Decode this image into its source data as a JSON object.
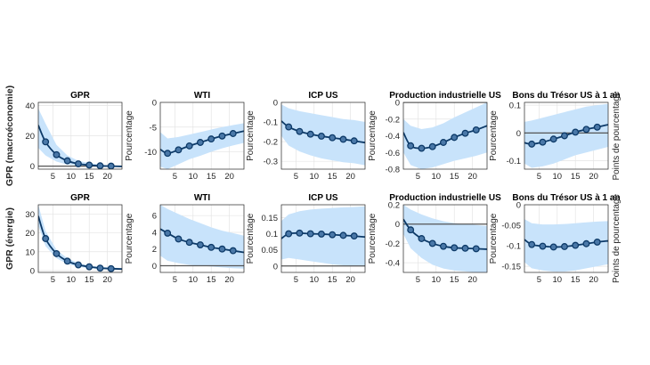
{
  "chart_data": [
    {
      "type": "line",
      "row": "macro",
      "title": "GPR",
      "ylabel": "GPR (macroéconomie)",
      "xlim": [
        1,
        24
      ],
      "ylim": [
        -2,
        42
      ],
      "xticks": [
        5,
        10,
        15,
        20
      ],
      "yticks": [
        0,
        20,
        40
      ],
      "grid": true,
      "zero_line": true,
      "x": [
        1,
        3,
        6,
        9,
        12,
        15,
        18,
        21,
        24
      ],
      "values": [
        27,
        16,
        7.5,
        3.5,
        1.5,
        0.7,
        0.2,
        0,
        -0.2
      ],
      "upper": [
        38,
        28,
        14,
        7,
        3.5,
        2,
        1,
        0.5,
        0.3
      ],
      "lower": [
        12,
        7,
        3,
        1,
        0.3,
        -0.2,
        -0.5,
        -0.6,
        -0.6
      ]
    },
    {
      "type": "line",
      "row": "macro",
      "title": "WTI",
      "ylabel": "Pourcentage",
      "xlim": [
        1,
        24
      ],
      "ylim": [
        -13.5,
        0
      ],
      "xticks": [
        5,
        10,
        15,
        20
      ],
      "yticks": [
        -10,
        -5,
        0
      ],
      "grid": true,
      "zero_line": false,
      "x": [
        1,
        3,
        6,
        9,
        12,
        15,
        18,
        21,
        24
      ],
      "values": [
        -9.5,
        -10.3,
        -9.6,
        -8.8,
        -8.1,
        -7.4,
        -6.8,
        -6.3,
        -5.8
      ],
      "upper": [
        -6,
        -7.3,
        -7,
        -6.5,
        -6,
        -5.5,
        -5,
        -4.6,
        -4.2
      ],
      "lower": [
        -13,
        -13.5,
        -12.5,
        -11.5,
        -10.8,
        -10,
        -9.3,
        -8.7,
        -8.2
      ]
    },
    {
      "type": "line",
      "row": "macro",
      "title": "ICP US",
      "ylabel": "Pourcentage",
      "xlim": [
        1,
        24
      ],
      "ylim": [
        -0.34,
        0
      ],
      "xticks": [
        5,
        10,
        15,
        20
      ],
      "yticks": [
        -0.3,
        -0.2,
        -0.1,
        0
      ],
      "grid": true,
      "zero_line": false,
      "x": [
        1,
        3,
        6,
        9,
        12,
        15,
        18,
        21,
        24
      ],
      "values": [
        -0.095,
        -0.125,
        -0.148,
        -0.162,
        -0.172,
        -0.18,
        -0.188,
        -0.196,
        -0.205
      ],
      "upper": [
        -0.01,
        -0.03,
        -0.045,
        -0.055,
        -0.065,
        -0.075,
        -0.085,
        -0.09,
        -0.1
      ],
      "lower": [
        -0.17,
        -0.22,
        -0.25,
        -0.27,
        -0.285,
        -0.295,
        -0.305,
        -0.31,
        -0.32
      ]
    },
    {
      "type": "line",
      "row": "macro",
      "title": "Production industrielle US",
      "ylabel": "Pourcentage",
      "xlim": [
        1,
        24
      ],
      "ylim": [
        -0.8,
        0
      ],
      "xticks": [
        5,
        10,
        15,
        20
      ],
      "yticks": [
        -0.8,
        -0.6,
        -0.4,
        -0.2,
        0
      ],
      "grid": true,
      "zero_line": true,
      "x": [
        1,
        3,
        6,
        9,
        12,
        15,
        18,
        21,
        24
      ],
      "values": [
        -0.36,
        -0.52,
        -0.55,
        -0.53,
        -0.48,
        -0.42,
        -0.37,
        -0.33,
        -0.28
      ],
      "upper": [
        -0.2,
        -0.28,
        -0.32,
        -0.3,
        -0.25,
        -0.18,
        -0.12,
        -0.06,
        0
      ],
      "lower": [
        -0.6,
        -0.75,
        -0.8,
        -0.78,
        -0.74,
        -0.7,
        -0.67,
        -0.64,
        -0.6
      ]
    },
    {
      "type": "line",
      "row": "macro",
      "title": "Bons du Trésor US à 1 an",
      "ylabel": "Pourcentage",
      "ylabel_right": "Points de pourcentage",
      "xlim": [
        1,
        24
      ],
      "ylim": [
        -0.13,
        0.11
      ],
      "xticks": [
        5,
        10,
        15,
        20
      ],
      "yticks": [
        -0.1,
        0,
        0.1
      ],
      "grid": true,
      "zero_line": true,
      "x": [
        1,
        3,
        6,
        9,
        12,
        15,
        18,
        21,
        24
      ],
      "values": [
        -0.035,
        -0.04,
        -0.033,
        -0.022,
        -0.01,
        0.003,
        0.013,
        0.021,
        0.03
      ],
      "upper": [
        0.04,
        0.045,
        0.055,
        0.065,
        0.075,
        0.085,
        0.095,
        0.1,
        0.105
      ],
      "lower": [
        -0.11,
        -0.125,
        -0.12,
        -0.11,
        -0.095,
        -0.08,
        -0.07,
        -0.06,
        -0.05
      ]
    },
    {
      "type": "line",
      "row": "energie",
      "title": "GPR",
      "ylabel": "GPR (énergie)",
      "xlim": [
        1,
        24
      ],
      "ylim": [
        -1,
        35
      ],
      "xticks": [
        5,
        10,
        15,
        20
      ],
      "yticks": [
        0,
        10,
        20,
        30
      ],
      "grid": true,
      "zero_line": false,
      "x": [
        1,
        3,
        6,
        9,
        12,
        15,
        18,
        21,
        24
      ],
      "values": [
        29,
        17,
        9,
        5,
        3,
        2,
        1.3,
        1,
        0.8
      ],
      "upper": [
        35,
        21,
        11,
        6.5,
        4,
        2.7,
        2,
        1.6,
        1.3
      ],
      "lower": [
        24,
        13,
        6.5,
        3.5,
        2,
        1.2,
        0.7,
        0.5,
        0.4
      ]
    },
    {
      "type": "line",
      "row": "energie",
      "title": "WTI",
      "ylabel": "Pourcentage",
      "xlim": [
        1,
        24
      ],
      "ylim": [
        -0.8,
        7.3
      ],
      "xticks": [
        5,
        10,
        15,
        20
      ],
      "yticks": [
        0,
        2,
        4,
        6
      ],
      "grid": true,
      "zero_line": true,
      "x": [
        1,
        3,
        6,
        9,
        12,
        15,
        18,
        21,
        24
      ],
      "values": [
        4.4,
        3.9,
        3.2,
        2.8,
        2.5,
        2.2,
        2,
        1.8,
        1.6
      ],
      "upper": [
        7.3,
        6.8,
        6.2,
        5.6,
        5.1,
        4.6,
        4.2,
        3.9,
        3.6
      ],
      "lower": [
        1.2,
        0.6,
        0.3,
        0.1,
        0,
        -0.1,
        -0.2,
        -0.3,
        -0.35
      ]
    },
    {
      "type": "line",
      "row": "energie",
      "title": "ICP US",
      "ylabel": "Pourcentage",
      "xlim": [
        1,
        24
      ],
      "ylim": [
        -0.02,
        0.19
      ],
      "xticks": [
        5,
        10,
        15,
        20
      ],
      "yticks": [
        0,
        0.05,
        0.1,
        0.15
      ],
      "grid": true,
      "zero_line": true,
      "x": [
        1,
        3,
        6,
        9,
        12,
        15,
        18,
        21,
        24
      ],
      "values": [
        0.085,
        0.1,
        0.102,
        0.1,
        0.099,
        0.097,
        0.095,
        0.093,
        0.09
      ],
      "upper": [
        0.14,
        0.16,
        0.17,
        0.175,
        0.178,
        0.18,
        0.182,
        0.183,
        0.185
      ],
      "lower": [
        0.02,
        0.025,
        0.02,
        0.015,
        0.01,
        0.005,
        0.002,
        0,
        -0.002
      ]
    },
    {
      "type": "line",
      "row": "energie",
      "title": "Production industrielle US",
      "ylabel": "Pourcentage",
      "xlim": [
        1,
        24
      ],
      "ylim": [
        -0.5,
        0.2
      ],
      "xticks": [
        5,
        10,
        15,
        20
      ],
      "yticks": [
        -0.4,
        -0.2,
        0,
        0.2
      ],
      "grid": true,
      "zero_line": true,
      "x": [
        1,
        3,
        6,
        9,
        12,
        15,
        18,
        21,
        24
      ],
      "values": [
        0.05,
        -0.06,
        -0.15,
        -0.2,
        -0.23,
        -0.245,
        -0.25,
        -0.255,
        -0.26
      ],
      "upper": [
        0.2,
        0.15,
        0.1,
        0.06,
        0.03,
        0.01,
        0,
        -0.01,
        -0.02
      ],
      "lower": [
        -0.1,
        -0.25,
        -0.35,
        -0.42,
        -0.46,
        -0.48,
        -0.49,
        -0.5,
        -0.5
      ]
    },
    {
      "type": "line",
      "row": "energie",
      "title": "Bons du Trésor US à 1 an",
      "ylabel": "Pourcentage",
      "ylabel_right": "Points de pourcentage",
      "xlim": [
        1,
        24
      ],
      "ylim": [
        -0.165,
        0
      ],
      "xticks": [
        5,
        10,
        15,
        20
      ],
      "yticks": [
        -0.15,
        -0.1,
        -0.05,
        0
      ],
      "grid": true,
      "zero_line": false,
      "x": [
        1,
        3,
        6,
        9,
        12,
        15,
        18,
        21,
        24
      ],
      "values": [
        -0.085,
        -0.097,
        -0.101,
        -0.103,
        -0.102,
        -0.099,
        -0.095,
        -0.091,
        -0.088
      ],
      "upper": [
        -0.035,
        -0.045,
        -0.048,
        -0.048,
        -0.047,
        -0.045,
        -0.043,
        -0.041,
        -0.04
      ],
      "lower": [
        -0.14,
        -0.155,
        -0.16,
        -0.163,
        -0.163,
        -0.16,
        -0.155,
        -0.15,
        -0.145
      ]
    }
  ],
  "colors": {
    "band": "#c8e3fb",
    "line": "#0d3a68",
    "marker_fill": "#4a78a8",
    "zero_line": "#555555",
    "grid": "#e4e4e4"
  }
}
